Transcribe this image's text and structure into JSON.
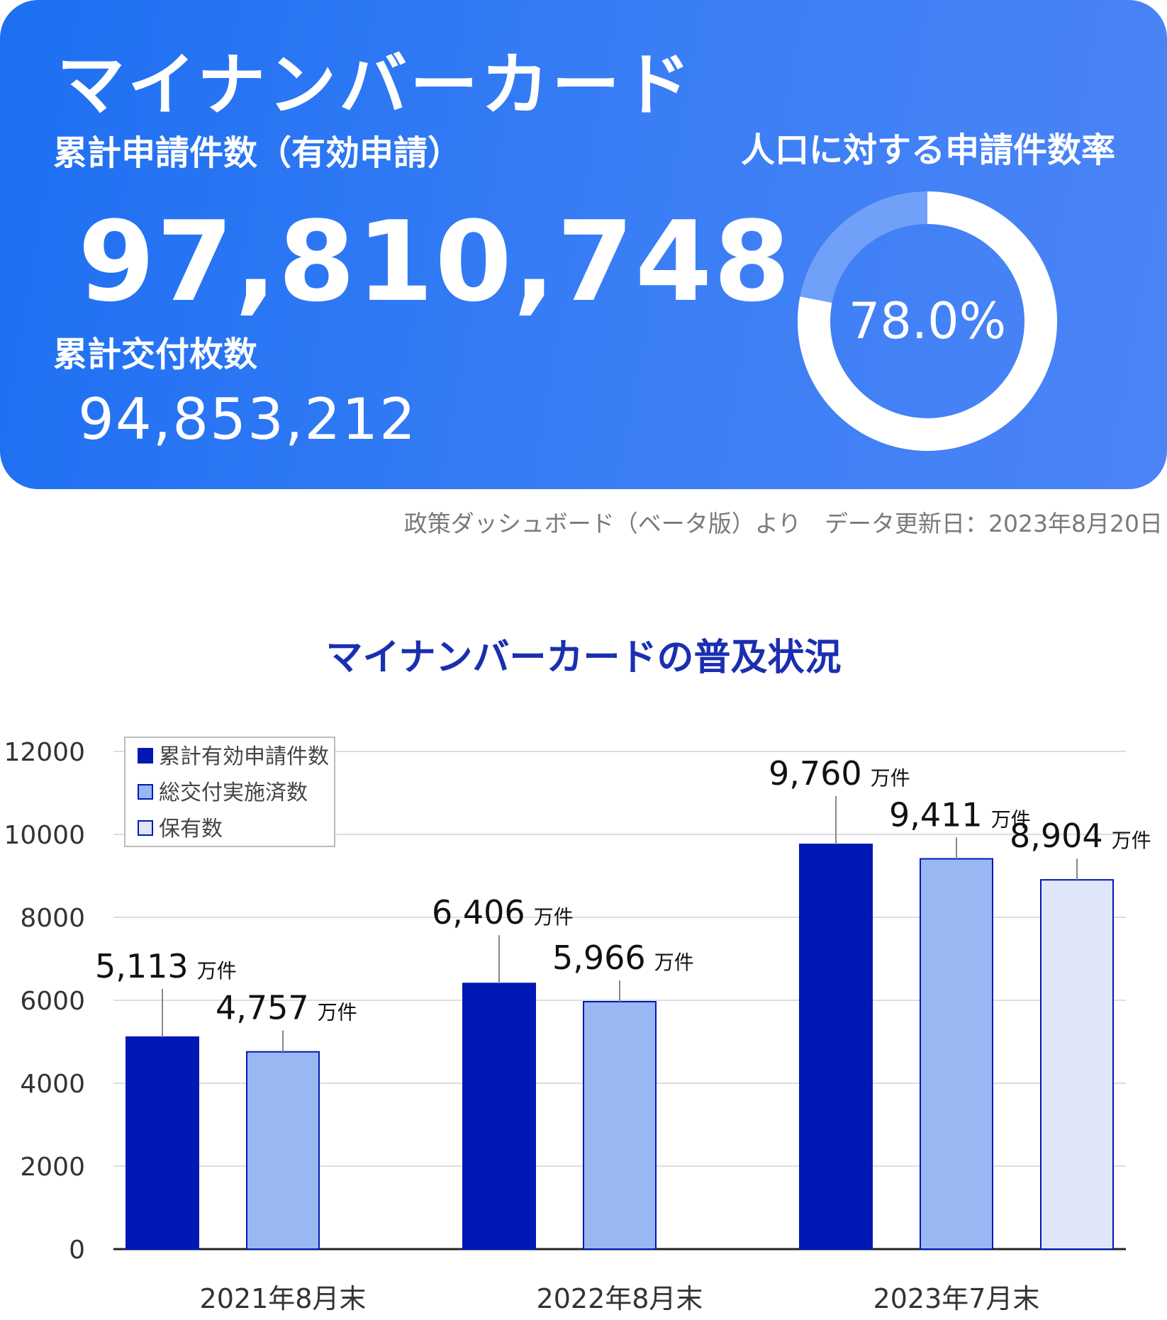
{
  "card": {
    "title": "マイナンバーカード",
    "applications_label": "累計申請件数（有効申請）",
    "applications_value": "97,810,748",
    "issued_label": "累計交付枚数",
    "issued_value": "94,853,212",
    "rate_label": "人口に対する申請件数率",
    "rate_text": "78.0%",
    "rate_fraction": 0.78
  },
  "source_note": "政策ダッシュボード（ベータ版）より　データ更新日：2023年8月20日",
  "colors": {
    "card_blue": "#2f78f4",
    "series_1": "#0019b5",
    "series_2": "#99b8f3",
    "series_3": "#dfe6fa",
    "title_blue": "#1a2fb0"
  },
  "chart_data": {
    "type": "bar",
    "title": "マイナンバーカードの普及状況",
    "categories": [
      "2021年8月末",
      "2022年8月末",
      "2023年7月末"
    ],
    "series": [
      {
        "name": "累計有効申請件数",
        "values": [
          5113,
          6406,
          9760
        ],
        "labels": [
          "5,113",
          "6,406",
          "9,760"
        ]
      },
      {
        "name": "総交付実施済数",
        "values": [
          4757,
          5966,
          9411
        ],
        "labels": [
          "4,757",
          "5,966",
          "9,411"
        ]
      },
      {
        "name": "保有数",
        "values": [
          null,
          null,
          8904
        ],
        "labels": [
          null,
          null,
          "8,904"
        ]
      }
    ],
    "unit": "万件",
    "ylim": [
      0,
      12000
    ],
    "yticks": [
      "0",
      "2000",
      "4000",
      "6000",
      "8000",
      "10000",
      "12000"
    ],
    "grid": true,
    "legend_position": "top-left"
  }
}
